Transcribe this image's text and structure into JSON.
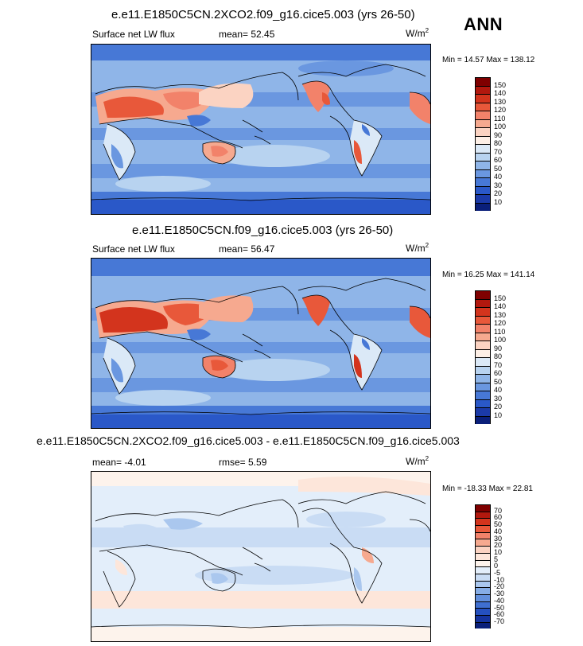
{
  "season": "ANN",
  "panels": [
    {
      "title": "e.e11.E1850C5CN.2XCO2.f09_g16.cice5.003 (yrs 26-50)",
      "left_label": "Surface net LW flux",
      "mid_label": "mean=  52.45",
      "unit": "W/m",
      "unit_sup": "2",
      "minmax": "Min =  14.57 Max = 138.12",
      "colorbar": [
        "150",
        "140",
        "130",
        "120",
        "110",
        "100",
        "90",
        "80",
        "70",
        "60",
        "50",
        "40",
        "30",
        "20",
        "10"
      ],
      "palette": [
        "#7f0000",
        "#b2180e",
        "#d3341d",
        "#e8583a",
        "#f2826a",
        "#f6a98f",
        "#fbd3c2",
        "#fdefe6",
        "#dbe9f7",
        "#b8d3f0",
        "#8fb5e8",
        "#6a97e0",
        "#4778d6",
        "#2a58c8",
        "#1b3aa8",
        "#0a1f7a"
      ]
    },
    {
      "title": "e.e11.E1850C5CN.f09_g16.cice5.003 (yrs 26-50)",
      "left_label": "Surface net LW flux",
      "mid_label": "mean=  56.47",
      "unit": "W/m",
      "unit_sup": "2",
      "minmax": "Min =  16.25 Max = 141.14",
      "colorbar": [
        "150",
        "140",
        "130",
        "120",
        "110",
        "100",
        "90",
        "80",
        "70",
        "60",
        "50",
        "40",
        "30",
        "20",
        "10"
      ],
      "palette": [
        "#7f0000",
        "#b2180e",
        "#d3341d",
        "#e8583a",
        "#f2826a",
        "#f6a98f",
        "#fbd3c2",
        "#fdefe6",
        "#dbe9f7",
        "#b8d3f0",
        "#8fb5e8",
        "#6a97e0",
        "#4778d6",
        "#2a58c8",
        "#1b3aa8",
        "#0a1f7a"
      ]
    },
    {
      "title": "e.e11.E1850C5CN.2XCO2.f09_g16.cice5.003 - e.e11.E1850C5CN.f09_g16.cice5.003",
      "left_label": "mean=  -4.01",
      "mid_label": "rmse=   5.59",
      "unit": "W/m",
      "unit_sup": "2",
      "minmax": "Min = -18.33 Max =  22.81",
      "colorbar": [
        "70",
        "60",
        "50",
        "40",
        "30",
        "20",
        "10",
        "5",
        "0",
        "-5",
        "-10",
        "-20",
        "-30",
        "-40",
        "-50",
        "-60",
        "-70"
      ],
      "palette": [
        "#7f0000",
        "#b2180e",
        "#d3341d",
        "#e8583a",
        "#f2826a",
        "#f6a98f",
        "#fbd3c2",
        "#fde6da",
        "#fdf3ec",
        "#e3eefa",
        "#c9dcf4",
        "#aac7ee",
        "#86ade6",
        "#628fdc",
        "#3f6fd0",
        "#2550bf",
        "#15339e",
        "#0a1f7a"
      ]
    }
  ]
}
